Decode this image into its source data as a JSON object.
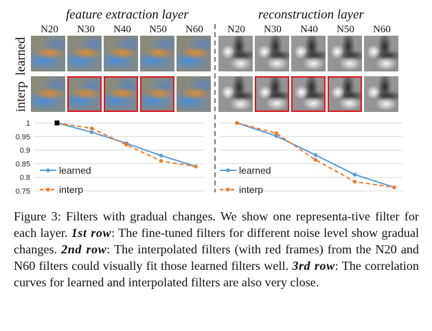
{
  "panels": [
    {
      "title": "feature extraction layer"
    },
    {
      "title": "reconstruction layer"
    }
  ],
  "columns": [
    "N20",
    "N30",
    "N40",
    "N50",
    "N60"
  ],
  "rows": [
    "learned",
    "interp"
  ],
  "interp_framed_columns": [
    "N30",
    "N40",
    "N50"
  ],
  "chart_data": [
    {
      "type": "line",
      "categories": [
        "N20",
        "N30",
        "N40",
        "N50",
        "N60"
      ],
      "yticks": [
        "1",
        "0.95",
        "0.9",
        "0.85",
        "0.8",
        "0.75"
      ],
      "ylim": [
        0.75,
        1.0
      ],
      "legend": [
        "learned",
        "interp"
      ],
      "series": [
        {
          "name": "learned",
          "values": [
            1.0,
            0.966,
            0.925,
            0.88,
            0.84
          ],
          "color": "#5b9bd5",
          "style": "solid"
        },
        {
          "name": "interp",
          "values": [
            1.0,
            0.98,
            0.92,
            0.86,
            0.84
          ],
          "color": "#ed7d31",
          "style": "dashed"
        }
      ]
    },
    {
      "type": "line",
      "categories": [
        "N20",
        "N30",
        "N40",
        "N50",
        "N60"
      ],
      "ylim": [
        0.75,
        1.0
      ],
      "legend": [
        "learned",
        "interp"
      ],
      "series": [
        {
          "name": "learned",
          "values": [
            1.0,
            0.952,
            0.882,
            0.81,
            0.763
          ],
          "color": "#5b9bd5",
          "style": "solid"
        },
        {
          "name": "interp",
          "values": [
            1.0,
            0.962,
            0.864,
            0.784,
            0.763
          ],
          "color": "#ed7d31",
          "style": "dashed"
        }
      ]
    }
  ],
  "caption": {
    "prefix": "Figure 3: Filters with gradual changes. We show one representa-tive filter for each layer. ",
    "row1_label": "1st row",
    "row1_text": ": The fine-tuned filters for different noise level show gradual changes. ",
    "row2_label": "2nd row",
    "row2_text": ": The interpolated filters (with red frames) from the N20 and N60 filters could visually fit those learned filters well. ",
    "row3_label": "3rd row",
    "row3_text": ": The correlation curves for learned and interpolated filters are also very close."
  }
}
